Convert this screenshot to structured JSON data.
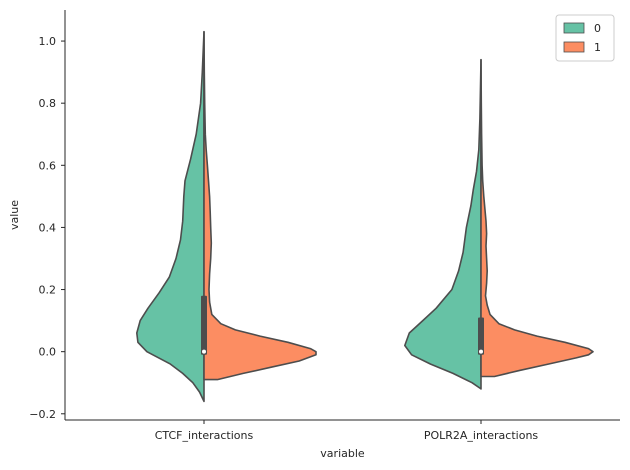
{
  "chart_data": {
    "type": "violin",
    "split": true,
    "categories": [
      "CTCF_interactions",
      "POLR2A_interactions"
    ],
    "xlabel": "variable",
    "ylabel": "value",
    "ylim": [
      -0.22,
      1.1
    ],
    "yticks": [
      -0.2,
      0.0,
      0.2,
      0.4,
      0.6,
      0.8,
      1.0
    ],
    "ytick_labels": [
      "−0.2",
      "0.0",
      "0.2",
      "0.4",
      "0.6",
      "0.8",
      "1.0"
    ],
    "grid": false,
    "legend_position": "top-right",
    "series": [
      {
        "name": "0",
        "color": "#66c2a5",
        "side": "left",
        "profiles": [
          [
            [
              -0.16,
              0.0
            ],
            [
              -0.13,
              0.04
            ],
            [
              -0.1,
              0.1
            ],
            [
              -0.07,
              0.19
            ],
            [
              -0.04,
              0.3
            ],
            [
              0.0,
              0.51
            ],
            [
              0.03,
              0.59
            ],
            [
              0.06,
              0.6
            ],
            [
              0.1,
              0.57
            ],
            [
              0.14,
              0.5
            ],
            [
              0.19,
              0.4
            ],
            [
              0.24,
              0.31
            ],
            [
              0.3,
              0.25
            ],
            [
              0.36,
              0.21
            ],
            [
              0.42,
              0.19
            ],
            [
              0.5,
              0.18
            ],
            [
              0.55,
              0.17
            ],
            [
              0.62,
              0.12
            ],
            [
              0.7,
              0.07
            ],
            [
              0.8,
              0.03
            ],
            [
              0.9,
              0.015
            ],
            [
              1.03,
              0.0
            ]
          ],
          [
            [
              -0.12,
              0.0
            ],
            [
              -0.1,
              0.08
            ],
            [
              -0.07,
              0.25
            ],
            [
              -0.04,
              0.45
            ],
            [
              -0.01,
              0.62
            ],
            [
              0.02,
              0.68
            ],
            [
              0.06,
              0.64
            ],
            [
              0.1,
              0.52
            ],
            [
              0.14,
              0.4
            ],
            [
              0.2,
              0.26
            ],
            [
              0.26,
              0.2
            ],
            [
              0.32,
              0.16
            ],
            [
              0.4,
              0.13
            ],
            [
              0.47,
              0.09
            ],
            [
              0.52,
              0.07
            ],
            [
              0.58,
              0.04
            ],
            [
              0.65,
              0.02
            ],
            [
              0.75,
              0.01
            ],
            [
              0.94,
              0.0
            ]
          ]
        ]
      },
      {
        "name": "1",
        "color": "#fc8d62",
        "side": "right",
        "profiles": [
          [
            [
              -0.09,
              0.0
            ],
            [
              -0.09,
              0.12
            ],
            [
              -0.07,
              0.35
            ],
            [
              -0.05,
              0.6
            ],
            [
              -0.03,
              0.85
            ],
            [
              -0.01,
              1.0
            ],
            [
              0.0,
              1.0
            ],
            [
              0.01,
              0.95
            ],
            [
              0.03,
              0.75
            ],
            [
              0.05,
              0.5
            ],
            [
              0.07,
              0.28
            ],
            [
              0.09,
              0.15
            ],
            [
              0.12,
              0.07
            ],
            [
              0.16,
              0.05
            ],
            [
              0.2,
              0.045
            ],
            [
              0.25,
              0.05
            ],
            [
              0.3,
              0.06
            ],
            [
              0.35,
              0.065
            ],
            [
              0.4,
              0.06
            ],
            [
              0.45,
              0.055
            ],
            [
              0.5,
              0.05
            ],
            [
              0.55,
              0.04
            ],
            [
              0.6,
              0.03
            ],
            [
              0.65,
              0.02
            ],
            [
              0.7,
              0.012
            ],
            [
              0.8,
              0.006
            ],
            [
              0.9,
              0.003
            ],
            [
              1.03,
              0.0
            ]
          ],
          [
            [
              -0.08,
              0.0
            ],
            [
              -0.08,
              0.12
            ],
            [
              -0.06,
              0.35
            ],
            [
              -0.04,
              0.6
            ],
            [
              -0.02,
              0.85
            ],
            [
              -0.01,
              0.96
            ],
            [
              0.0,
              1.0
            ],
            [
              0.01,
              0.96
            ],
            [
              0.03,
              0.75
            ],
            [
              0.05,
              0.5
            ],
            [
              0.07,
              0.3
            ],
            [
              0.09,
              0.16
            ],
            [
              0.12,
              0.08
            ],
            [
              0.15,
              0.055
            ],
            [
              0.18,
              0.04
            ],
            [
              0.22,
              0.05
            ],
            [
              0.26,
              0.055
            ],
            [
              0.3,
              0.05
            ],
            [
              0.34,
              0.045
            ],
            [
              0.38,
              0.05
            ],
            [
              0.42,
              0.045
            ],
            [
              0.46,
              0.035
            ],
            [
              0.5,
              0.025
            ],
            [
              0.55,
              0.015
            ],
            [
              0.6,
              0.01
            ],
            [
              0.7,
              0.005
            ],
            [
              0.8,
              0.003
            ],
            [
              0.94,
              0.0
            ]
          ]
        ]
      }
    ],
    "box": [
      {
        "q1": -0.01,
        "median": 0.0,
        "q3": 0.18
      },
      {
        "q1": -0.01,
        "median": 0.0,
        "q3": 0.11
      }
    ]
  }
}
